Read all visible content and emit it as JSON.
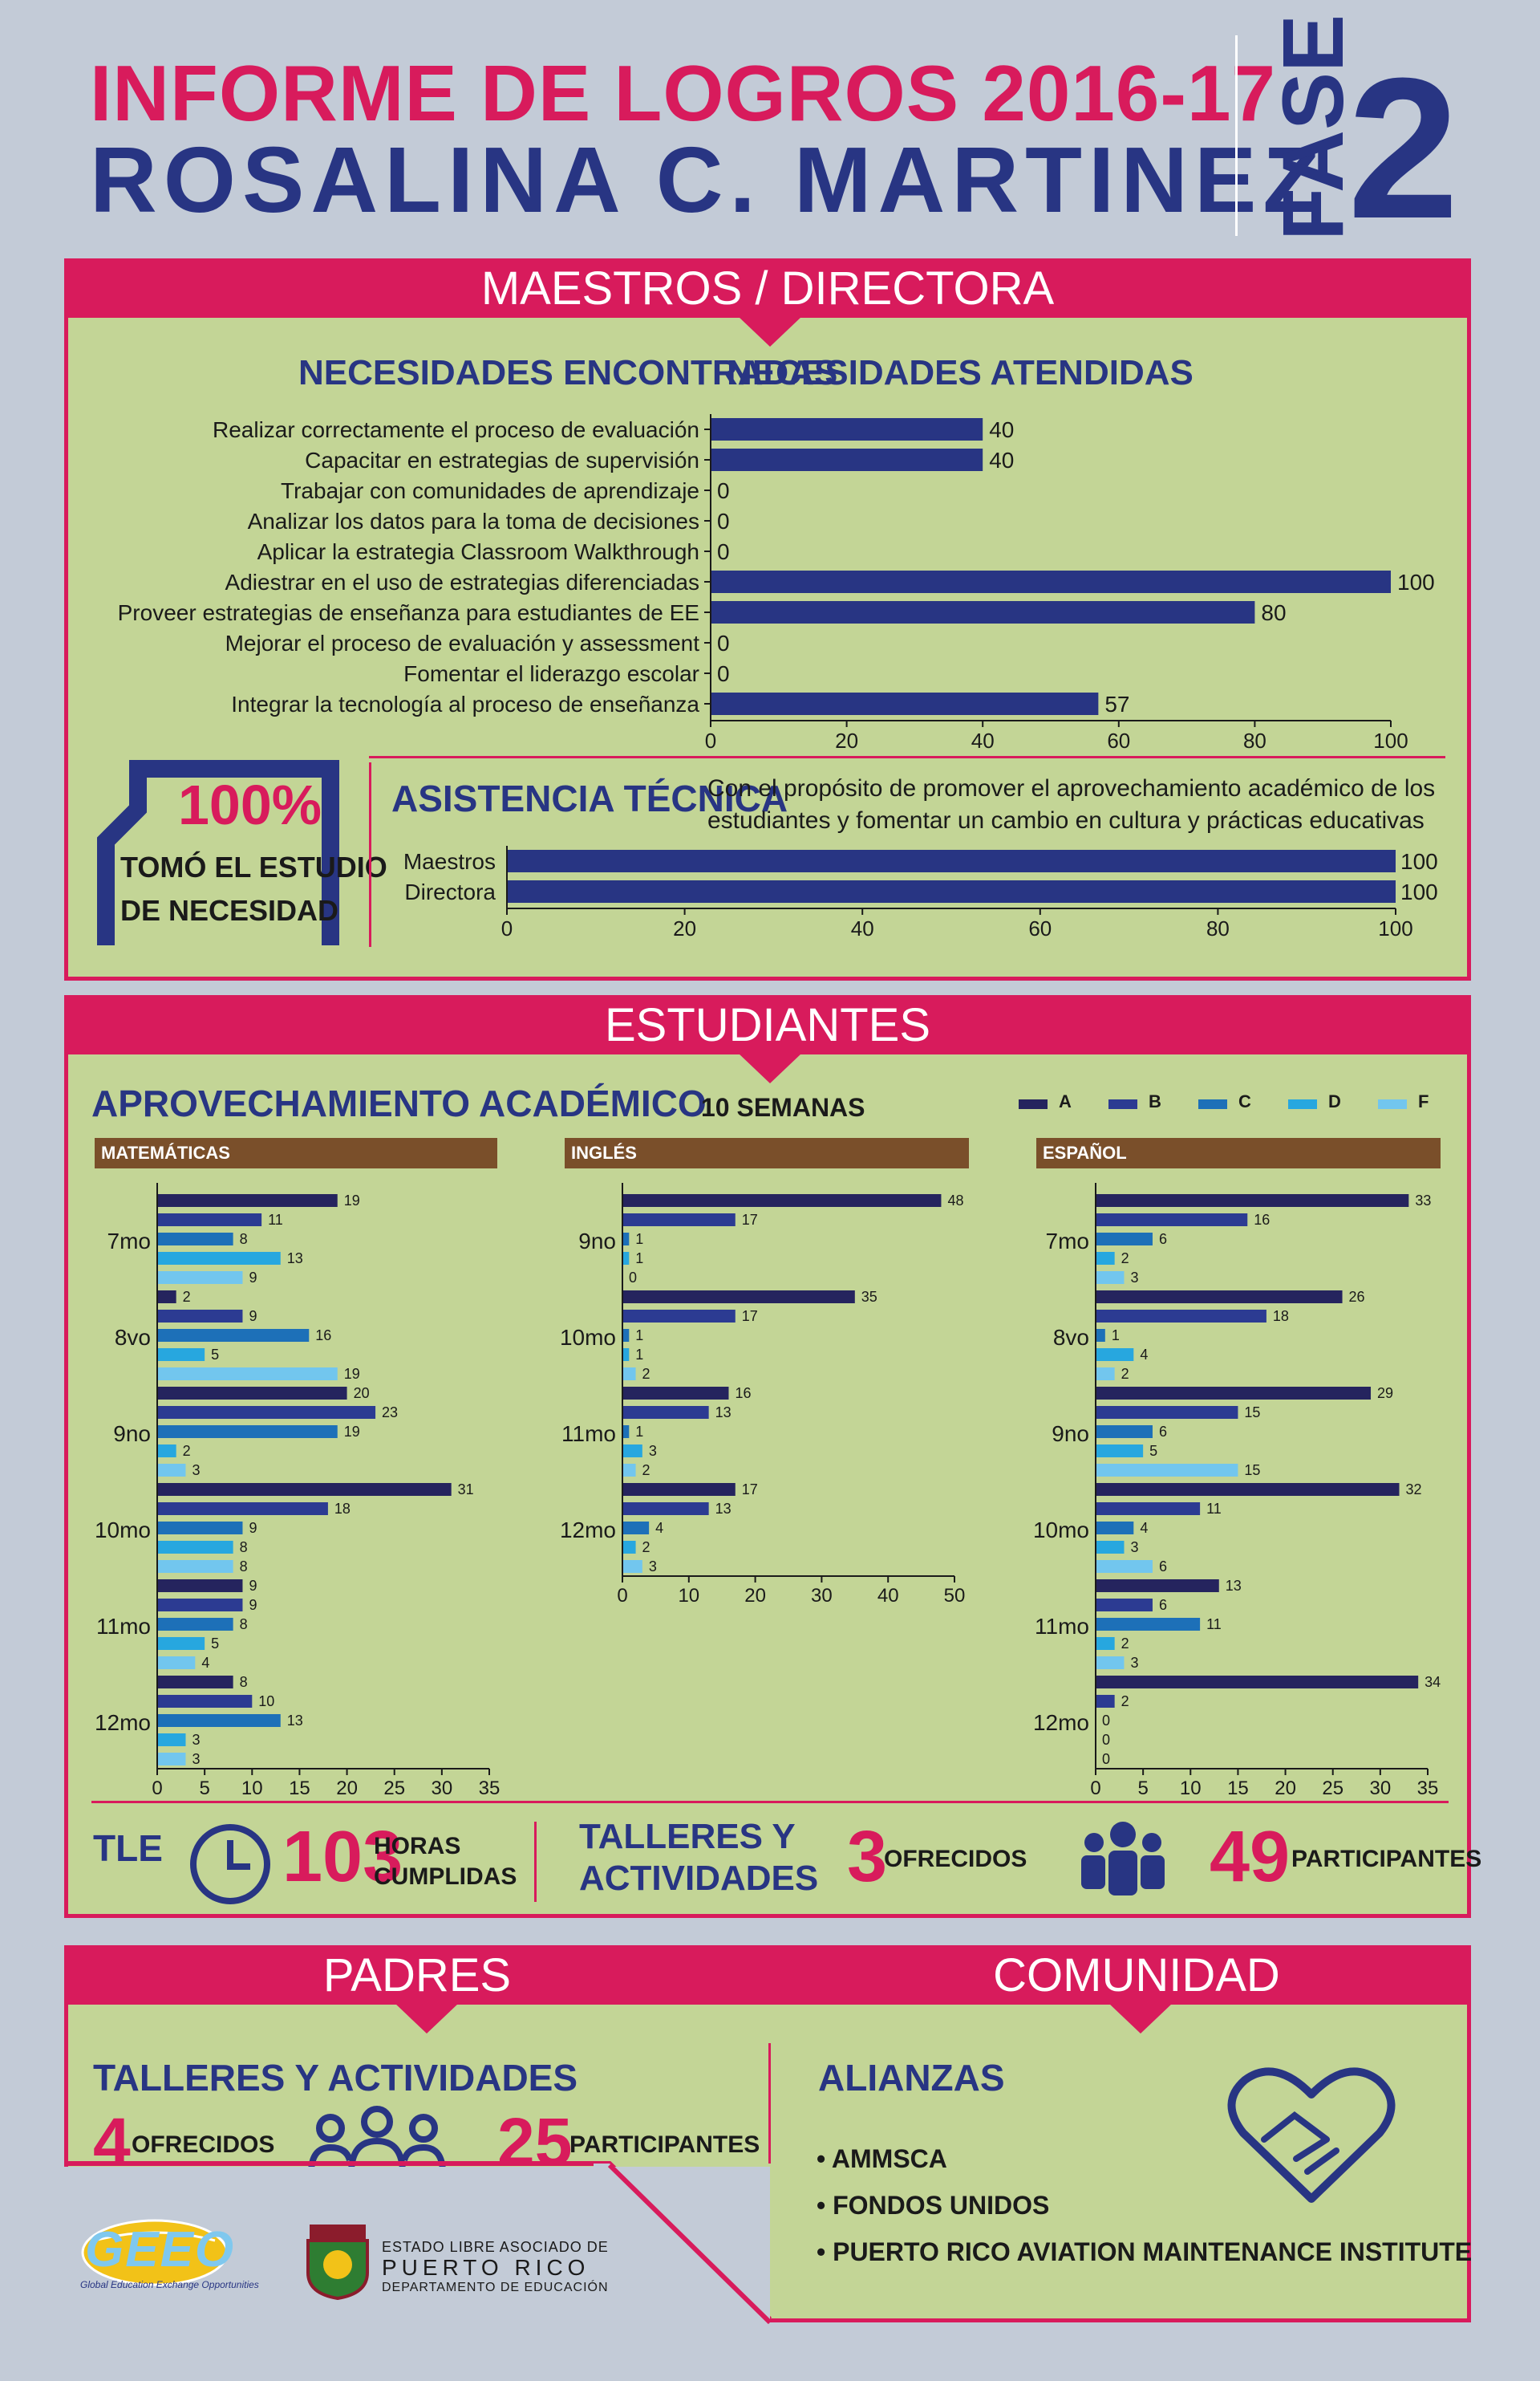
{
  "header": {
    "title_line1": "INFORME DE LOGROS 2016-17",
    "title_line2": "ROSALINA C. MARTINEZ",
    "fase_word": "FASE",
    "fase_number": "2"
  },
  "maestros": {
    "section_title": "MAESTROS / DIRECTORA",
    "col_left": "NECESIDADES ENCONTRADAS",
    "col_right": "NECESIDADES ATENDIDAS",
    "badge_percent": "100%",
    "badge_line1": "TOMÓ EL ESTUDIO",
    "badge_line2": "DE NECESIDAD",
    "asistencia_title": "ASISTENCIA TÉCNICA",
    "asistencia_desc_line1": "Con el propósito de promover el aprovechamiento académico de los",
    "asistencia_desc_line2": "estudiantes y fomentar un cambio en cultura y prácticas educativas"
  },
  "estudiantes": {
    "section_title": "ESTUDIANTES",
    "aprov_title": "APROVECHAMIENTO ACADÉMICO",
    "weeks_label": "10 SEMANAS",
    "legend": [
      "A",
      "B",
      "C",
      "D",
      "F"
    ],
    "subjects": [
      "MATEMÁTICAS",
      "INGLÉS",
      "ESPAÑOL"
    ],
    "tle_label": "TLE",
    "horas_value": "103",
    "horas_label1": "HORAS",
    "horas_label2": "CUMPLIDAS",
    "talleres_label1": "TALLERES Y",
    "talleres_label2": "ACTIVIDADES",
    "ofrecidos_value": "3",
    "ofrecidos_label": "OFRECIDOS",
    "participantes_value": "49",
    "participantes_label": "PARTICIPANTES"
  },
  "padres": {
    "section_title": "PADRES",
    "talleres_title": "TALLERES Y ACTIVIDADES",
    "ofrecidos_value": "4",
    "ofrecidos_label": "OFRECIDOS",
    "participantes_value": "25",
    "participantes_label": "PARTICIPANTES"
  },
  "comunidad": {
    "section_title": "COMUNIDAD",
    "alianzas_title": "ALIANZAS",
    "alianzas": [
      "• AMMSCA",
      "• FONDOS UNIDOS",
      "• PUERTO RICO AVIATION MAINTENANCE INSTITUTE"
    ]
  },
  "footer": {
    "geeo_logo": "GEEO",
    "geeo_tagline": "Global Education Exchange Opportunities",
    "gov_line1": "ESTADO LIBRE ASOCIADO DE",
    "gov_line2": "PUERTO RICO",
    "gov_line3": "DEPARTAMENTO DE EDUCACIÓN"
  },
  "colors": {
    "navy": "#283583",
    "pink": "#d81b5c",
    "green_panel": "#c3d596",
    "grade_A": "#25245e",
    "grade_B": "#2c3b92",
    "grade_C": "#1d70b8",
    "grade_D": "#27a7df",
    "grade_F": "#72c6ee"
  },
  "chart_data": [
    {
      "type": "bar",
      "orientation": "horizontal",
      "id": "necesidades",
      "categories": [
        "Realizar correctamente el proceso de evaluación",
        "Capacitar en estrategias de supervisión",
        "Trabajar con comunidades de aprendizaje",
        "Analizar los datos para la toma de decisiones",
        "Aplicar la estrategia Classroom Walkthrough",
        "Adiestrar en el uso de estrategias diferenciadas",
        "Proveer estrategias de enseñanza para estudiantes de EE",
        "Mejorar el proceso de evaluación y assessment",
        "Fomentar el liderazgo escolar",
        "Integrar la tecnología al proceso de enseñanza"
      ],
      "values": [
        40,
        40,
        0,
        0,
        0,
        100,
        80,
        0,
        0,
        57
      ],
      "xlim": [
        0,
        100
      ],
      "xticks": [
        0,
        20,
        40,
        60,
        80,
        100
      ]
    },
    {
      "type": "bar",
      "orientation": "horizontal",
      "id": "asistencia",
      "categories": [
        "Maestros",
        "Directora"
      ],
      "values": [
        100,
        100
      ],
      "xlim": [
        0,
        100
      ],
      "xticks": [
        0,
        20,
        40,
        60,
        80,
        100
      ]
    },
    {
      "type": "bar",
      "orientation": "horizontal",
      "id": "matematicas",
      "categories": [
        "7mo",
        "8vo",
        "9no",
        "10mo",
        "11mo",
        "12mo"
      ],
      "series": [
        {
          "name": "A",
          "values": [
            19,
            2,
            20,
            31,
            9,
            8
          ]
        },
        {
          "name": "B",
          "values": [
            11,
            9,
            23,
            18,
            9,
            10
          ]
        },
        {
          "name": "C",
          "values": [
            8,
            16,
            19,
            9,
            8,
            13
          ]
        },
        {
          "name": "D",
          "values": [
            13,
            5,
            2,
            8,
            5,
            3
          ]
        },
        {
          "name": "F",
          "values": [
            9,
            19,
            3,
            8,
            4,
            3
          ]
        }
      ],
      "xlim": [
        0,
        35
      ],
      "xticks": [
        0,
        5,
        10,
        15,
        20,
        25,
        30,
        35
      ]
    },
    {
      "type": "bar",
      "orientation": "horizontal",
      "id": "ingles",
      "categories": [
        "9no",
        "10mo",
        "11mo",
        "12mo"
      ],
      "series": [
        {
          "name": "A",
          "values": [
            48,
            35,
            16,
            17
          ]
        },
        {
          "name": "B",
          "values": [
            17,
            17,
            13,
            13
          ]
        },
        {
          "name": "C",
          "values": [
            1,
            1,
            1,
            4
          ]
        },
        {
          "name": "D",
          "values": [
            1,
            1,
            3,
            2
          ]
        },
        {
          "name": "F",
          "values": [
            0,
            2,
            2,
            3
          ]
        }
      ],
      "xlim": [
        0,
        50
      ],
      "xticks": [
        0,
        10,
        20,
        30,
        40,
        50
      ]
    },
    {
      "type": "bar",
      "orientation": "horizontal",
      "id": "espanol",
      "categories": [
        "7mo",
        "8vo",
        "9no",
        "10mo",
        "11mo",
        "12mo"
      ],
      "series": [
        {
          "name": "A",
          "values": [
            33,
            26,
            29,
            32,
            13,
            34
          ]
        },
        {
          "name": "B",
          "values": [
            16,
            18,
            15,
            11,
            6,
            2
          ]
        },
        {
          "name": "C",
          "values": [
            6,
            1,
            6,
            4,
            11,
            0
          ]
        },
        {
          "name": "D",
          "values": [
            2,
            4,
            5,
            3,
            2,
            0
          ]
        },
        {
          "name": "F",
          "values": [
            3,
            2,
            15,
            6,
            3,
            0
          ]
        }
      ],
      "xlim": [
        0,
        35
      ],
      "xticks": [
        0,
        5,
        10,
        15,
        20,
        25,
        30,
        35
      ]
    }
  ]
}
